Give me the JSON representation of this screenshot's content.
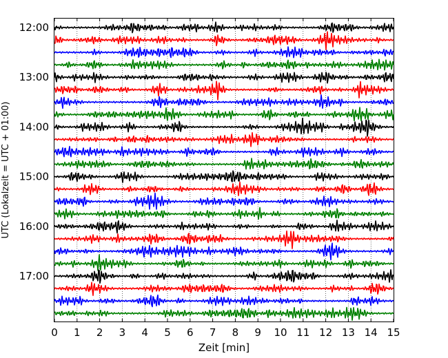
{
  "chart_data": {
    "type": "line",
    "title": "",
    "xlabel": "Zeit  [min]",
    "ylabel": "UTC (Lokalzeit = UTC + 01:00)",
    "xlim": [
      0,
      15
    ],
    "x_ticks": [
      "0",
      "1",
      "2",
      "3",
      "4",
      "5",
      "6",
      "7",
      "8",
      "9",
      "10",
      "11",
      "12",
      "13",
      "14",
      "15"
    ],
    "y_tick_labels": [
      "12:00",
      "13:00",
      "14:00",
      "15:00",
      "16:00",
      "17:00"
    ],
    "trace_interval_minutes": 15,
    "start_time": "12:00",
    "traces": [
      {
        "start": "12:00",
        "color": "#000000"
      },
      {
        "start": "12:15",
        "color": "#ff0000"
      },
      {
        "start": "12:30",
        "color": "#0000ff"
      },
      {
        "start": "12:45",
        "color": "#008000"
      },
      {
        "start": "13:00",
        "color": "#000000"
      },
      {
        "start": "13:15",
        "color": "#ff0000"
      },
      {
        "start": "13:30",
        "color": "#0000ff"
      },
      {
        "start": "13:45",
        "color": "#008000"
      },
      {
        "start": "14:00",
        "color": "#000000"
      },
      {
        "start": "14:15",
        "color": "#ff0000"
      },
      {
        "start": "14:30",
        "color": "#0000ff"
      },
      {
        "start": "14:45",
        "color": "#008000"
      },
      {
        "start": "15:00",
        "color": "#000000"
      },
      {
        "start": "15:15",
        "color": "#ff0000"
      },
      {
        "start": "15:30",
        "color": "#0000ff"
      },
      {
        "start": "15:45",
        "color": "#008000"
      },
      {
        "start": "16:00",
        "color": "#000000"
      },
      {
        "start": "16:15",
        "color": "#ff0000"
      },
      {
        "start": "16:30",
        "color": "#0000ff"
      },
      {
        "start": "16:45",
        "color": "#008000"
      },
      {
        "start": "17:00",
        "color": "#000000"
      },
      {
        "start": "17:15",
        "color": "#ff0000"
      },
      {
        "start": "17:30",
        "color": "#0000ff"
      },
      {
        "start": "17:45",
        "color": "#008000"
      }
    ],
    "grid": "vertical-dotted",
    "legend": "none"
  }
}
